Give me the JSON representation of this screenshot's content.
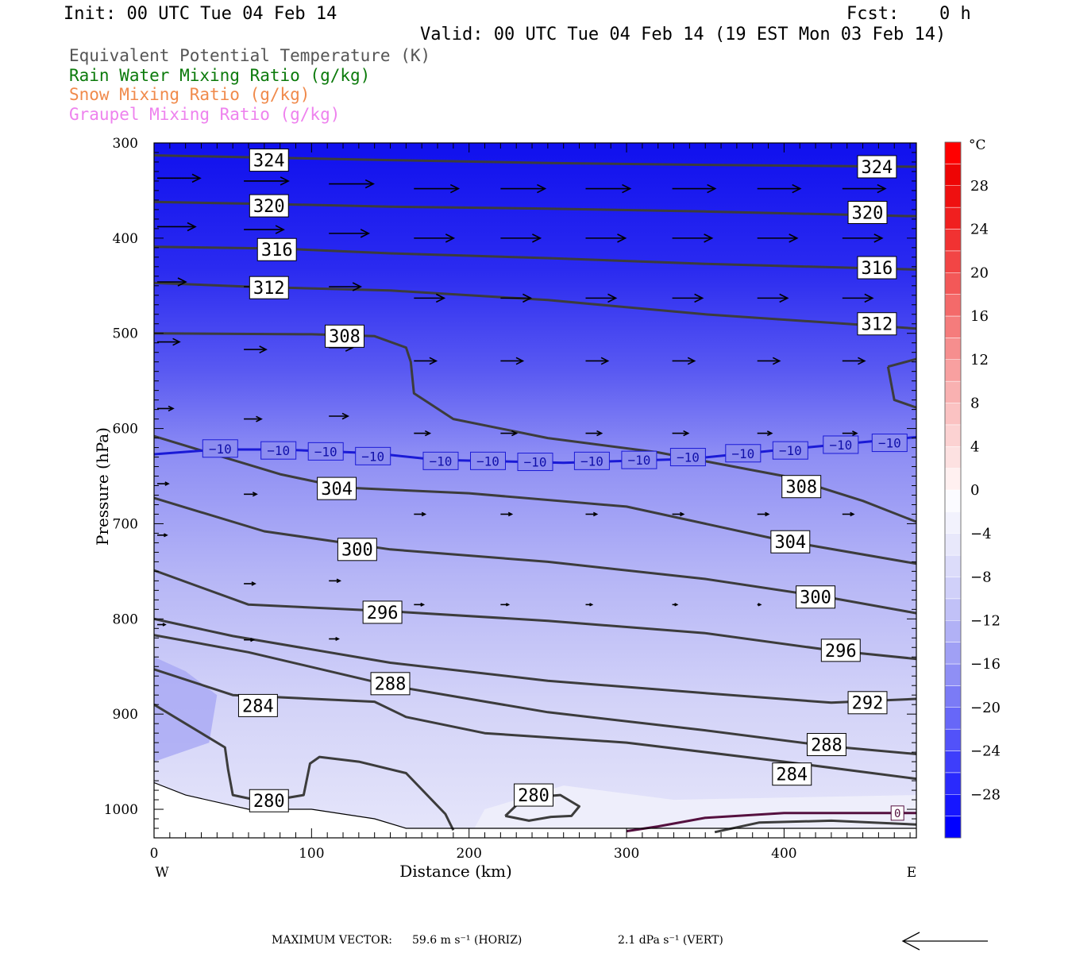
{
  "header": {
    "init": "Init: 00 UTC Tue 04 Feb 14",
    "fcst_label": "Fcst:",
    "fcst_value": "0 h",
    "valid": "Valid: 00 UTC Tue 04 Feb 14 (19 EST Mon 03 Feb 14)"
  },
  "legend": [
    {
      "text": "Equivalent Potential Temperature (K)",
      "color": "#555555"
    },
    {
      "text": "Rain Water Mixing Ratio (g/kg)",
      "color": "#0b7a0b"
    },
    {
      "text": "Snow Mixing Ratio (g/kg)",
      "color": "#f08a4b"
    },
    {
      "text": "Graupel Mixing Ratio (g/kg)",
      "color": "#ee82ee"
    }
  ],
  "chart_data": {
    "type": "contour",
    "xlabel": "Distance (km)",
    "ylabel": "Pressure (hPa)",
    "x_end_left": "W",
    "x_end_right": "E",
    "xlim": [
      0,
      484
    ],
    "ylim": [
      1030,
      300
    ],
    "x_ticks": [
      0,
      100,
      200,
      300,
      400
    ],
    "y_ticks": [
      300,
      400,
      500,
      600,
      700,
      800,
      900,
      1000
    ],
    "colorbar": {
      "unit": "°C",
      "tick_labels": [
        "28",
        "24",
        "20",
        "16",
        "12",
        "8",
        "4",
        "0",
        "−4",
        "−8",
        "−12",
        "−16",
        "−20",
        "−24",
        "−28"
      ],
      "tick_values": [
        28,
        24,
        20,
        16,
        12,
        8,
        4,
        0,
        -4,
        -8,
        -12,
        -16,
        -20,
        -24,
        -28
      ],
      "range": [
        -32,
        32
      ]
    },
    "theta_e_contours": [
      {
        "label": "324",
        "points": [
          [
            0,
            313
          ],
          [
            60,
            315
          ],
          [
            150,
            318
          ],
          [
            250,
            321
          ],
          [
            350,
            323
          ],
          [
            484,
            325
          ]
        ],
        "labels_at": [
          [
            73,
            318
          ],
          [
            459,
            325
          ]
        ]
      },
      {
        "label": "320",
        "points": [
          [
            0,
            362
          ],
          [
            70,
            364
          ],
          [
            150,
            367
          ],
          [
            250,
            369
          ],
          [
            350,
            372
          ],
          [
            484,
            377
          ]
        ],
        "labels_at": [
          [
            73,
            366
          ],
          [
            453,
            373
          ]
        ]
      },
      {
        "label": "316",
        "points": [
          [
            0,
            409
          ],
          [
            80,
            411
          ],
          [
            150,
            416
          ],
          [
            250,
            421
          ],
          [
            350,
            427
          ],
          [
            484,
            433
          ]
        ],
        "labels_at": [
          [
            78,
            412
          ],
          [
            459,
            431
          ]
        ]
      },
      {
        "label": "312",
        "points": [
          [
            0,
            447
          ],
          [
            60,
            451
          ],
          [
            150,
            455
          ],
          [
            250,
            465
          ],
          [
            350,
            480
          ],
          [
            484,
            495
          ]
        ],
        "labels_at": [
          [
            73,
            452
          ],
          [
            459,
            490
          ]
        ]
      },
      {
        "label": "308",
        "points": [
          [
            0,
            500
          ],
          [
            100,
            501
          ],
          [
            140,
            503
          ],
          [
            160,
            515
          ],
          [
            163,
            530
          ],
          [
            165,
            563
          ],
          [
            190,
            590
          ],
          [
            250,
            610
          ],
          [
            320,
            625
          ],
          [
            400,
            650
          ],
          [
            450,
            676
          ],
          [
            484,
            698
          ]
        ],
        "labels_at": [
          [
            121,
            503
          ],
          [
            411,
            661
          ]
        ]
      },
      {
        "label": "304",
        "points": [
          [
            0,
            608
          ],
          [
            40,
            628
          ],
          [
            80,
            648
          ],
          [
            120,
            662
          ],
          [
            200,
            668
          ],
          [
            300,
            682
          ],
          [
            400,
            718
          ],
          [
            484,
            742
          ]
        ],
        "labels_at": [
          [
            116,
            663
          ],
          [
            404,
            719
          ]
        ]
      },
      {
        "label": "300",
        "points": [
          [
            0,
            673
          ],
          [
            70,
            708
          ],
          [
            150,
            727
          ],
          [
            250,
            740
          ],
          [
            350,
            758
          ],
          [
            430,
            778
          ],
          [
            484,
            794
          ]
        ],
        "labels_at": [
          [
            129,
            727
          ],
          [
            420,
            777
          ]
        ]
      },
      {
        "label": "296",
        "points": [
          [
            0,
            749
          ],
          [
            60,
            785
          ],
          [
            150,
            792
          ],
          [
            250,
            802
          ],
          [
            350,
            815
          ],
          [
            430,
            833
          ],
          [
            484,
            842
          ]
        ],
        "labels_at": [
          [
            145,
            793
          ],
          [
            436,
            833
          ]
        ]
      },
      {
        "label": "292",
        "points": [
          [
            0,
            800
          ],
          [
            50,
            818
          ],
          [
            150,
            846
          ],
          [
            250,
            865
          ],
          [
            350,
            878
          ],
          [
            430,
            888
          ],
          [
            484,
            884
          ]
        ],
        "labels_at": [
          [
            453,
            888
          ]
        ]
      },
      {
        "label": "288",
        "points": [
          [
            0,
            817
          ],
          [
            60,
            835
          ],
          [
            150,
            870
          ],
          [
            250,
            898
          ],
          [
            350,
            917
          ],
          [
            430,
            934
          ],
          [
            484,
            942
          ]
        ],
        "labels_at": [
          [
            150,
            868
          ],
          [
            427,
            932
          ]
        ]
      },
      {
        "label": "284",
        "points": [
          [
            0,
            853
          ],
          [
            50,
            880
          ],
          [
            140,
            887
          ],
          [
            160,
            903
          ],
          [
            210,
            920
          ],
          [
            300,
            930
          ],
          [
            400,
            950
          ],
          [
            484,
            968
          ]
        ],
        "labels_at": [
          [
            66,
            891
          ],
          [
            405,
            963
          ]
        ]
      },
      {
        "label": "280",
        "points": [
          [
            0,
            890
          ],
          [
            20,
            910
          ],
          [
            45,
            935
          ],
          [
            47,
            958
          ],
          [
            50,
            985
          ],
          [
            70,
            992
          ],
          [
            95,
            985
          ],
          [
            99,
            952
          ],
          [
            105,
            945
          ],
          [
            130,
            950
          ],
          [
            160,
            962
          ],
          [
            185,
            1005
          ],
          [
            190,
            1022
          ]
        ],
        "labels_at": [
          [
            73,
            991
          ]
        ]
      },
      {
        "label": "280",
        "points": [
          [
            223,
            1007
          ],
          [
            235,
            988
          ],
          [
            258,
            985
          ],
          [
            270,
            997
          ],
          [
            265,
            1007
          ],
          [
            252,
            1008
          ],
          [
            238,
            1012
          ],
          [
            223,
            1007
          ]
        ],
        "labels_at": [
          [
            241,
            985
          ]
        ]
      },
      {
        "label": "",
        "points": [
          [
            466,
            535
          ],
          [
            484,
            527
          ]
        ],
        "labels_at": []
      },
      {
        "label": "",
        "points": [
          [
            466,
            535
          ],
          [
            470,
            570
          ],
          [
            484,
            578
          ]
        ],
        "labels_at": []
      },
      {
        "label": "",
        "points": [
          [
            356,
            1024
          ],
          [
            384,
            1014
          ],
          [
            430,
            1012
          ],
          [
            484,
            1016
          ]
        ],
        "labels_at": []
      }
    ],
    "isotherm_minus10": {
      "label": "−10",
      "points": [
        [
          0,
          627
        ],
        [
          40,
          622
        ],
        [
          80,
          622
        ],
        [
          140,
          626
        ],
        [
          180,
          633
        ],
        [
          260,
          636
        ],
        [
          340,
          632
        ],
        [
          400,
          622
        ],
        [
          484,
          609
        ]
      ],
      "labels_at": [
        [
          42,
          621
        ],
        [
          79,
          623
        ],
        [
          109,
          624
        ],
        [
          139,
          629
        ],
        [
          182,
          634
        ],
        [
          212,
          634
        ],
        [
          242,
          635
        ],
        [
          278,
          634
        ],
        [
          308,
          633
        ],
        [
          339,
          630
        ],
        [
          374,
          626
        ],
        [
          404,
          623
        ],
        [
          436,
          617
        ],
        [
          467,
          615
        ]
      ]
    },
    "zero_contour": {
      "label": "0",
      "points": [
        [
          300,
          1023
        ],
        [
          320,
          1018
        ],
        [
          350,
          1009
        ],
        [
          400,
          1004
        ],
        [
          484,
          1004
        ]
      ],
      "label_at": [
        [
          472,
          1004
        ]
      ]
    },
    "wind_vectors": [
      {
        "x": 0,
        "p": 337,
        "len": 54
      },
      {
        "x": 55,
        "p": 340,
        "len": 56
      },
      {
        "x": 109,
        "p": 343,
        "len": 56
      },
      {
        "x": 163,
        "p": 348,
        "len": 56
      },
      {
        "x": 218,
        "p": 348,
        "len": 56
      },
      {
        "x": 272,
        "p": 348,
        "len": 56
      },
      {
        "x": 327,
        "p": 348,
        "len": 54
      },
      {
        "x": 381,
        "p": 348,
        "len": 54
      },
      {
        "x": 435,
        "p": 348,
        "len": 54
      },
      {
        "x": 0,
        "p": 388,
        "len": 48
      },
      {
        "x": 55,
        "p": 391,
        "len": 50
      },
      {
        "x": 109,
        "p": 395,
        "len": 50
      },
      {
        "x": 163,
        "p": 400,
        "len": 50
      },
      {
        "x": 218,
        "p": 400,
        "len": 50
      },
      {
        "x": 272,
        "p": 400,
        "len": 50
      },
      {
        "x": 327,
        "p": 400,
        "len": 50
      },
      {
        "x": 381,
        "p": 400,
        "len": 50
      },
      {
        "x": 435,
        "p": 400,
        "len": 50
      },
      {
        "x": 0,
        "p": 446,
        "len": 36
      },
      {
        "x": 55,
        "p": 451,
        "len": 40
      },
      {
        "x": 109,
        "p": 451,
        "len": 40
      },
      {
        "x": 163,
        "p": 463,
        "len": 38
      },
      {
        "x": 218,
        "p": 463,
        "len": 38
      },
      {
        "x": 272,
        "p": 463,
        "len": 38
      },
      {
        "x": 327,
        "p": 463,
        "len": 38
      },
      {
        "x": 381,
        "p": 463,
        "len": 38
      },
      {
        "x": 435,
        "p": 463,
        "len": 38
      },
      {
        "x": 0,
        "p": 509,
        "len": 28
      },
      {
        "x": 55,
        "p": 517,
        "len": 28
      },
      {
        "x": 109,
        "p": 515,
        "len": 30
      },
      {
        "x": 163,
        "p": 529,
        "len": 28
      },
      {
        "x": 218,
        "p": 529,
        "len": 28
      },
      {
        "x": 272,
        "p": 529,
        "len": 28
      },
      {
        "x": 327,
        "p": 529,
        "len": 28
      },
      {
        "x": 381,
        "p": 529,
        "len": 28
      },
      {
        "x": 435,
        "p": 529,
        "len": 28
      },
      {
        "x": 0,
        "p": 579,
        "len": 20
      },
      {
        "x": 55,
        "p": 590,
        "len": 22
      },
      {
        "x": 109,
        "p": 587,
        "len": 24
      },
      {
        "x": 163,
        "p": 605,
        "len": 20
      },
      {
        "x": 218,
        "p": 605,
        "len": 20
      },
      {
        "x": 272,
        "p": 605,
        "len": 20
      },
      {
        "x": 327,
        "p": 605,
        "len": 20
      },
      {
        "x": 381,
        "p": 605,
        "len": 18
      },
      {
        "x": 435,
        "p": 605,
        "len": 18
      },
      {
        "x": 0,
        "p": 658,
        "len": 14
      },
      {
        "x": 55,
        "p": 669,
        "len": 16
      },
      {
        "x": 109,
        "p": 668,
        "len": 20
      },
      {
        "x": 163,
        "p": 690,
        "len": 14
      },
      {
        "x": 218,
        "p": 690,
        "len": 14
      },
      {
        "x": 272,
        "p": 690,
        "len": 14
      },
      {
        "x": 327,
        "p": 690,
        "len": 14
      },
      {
        "x": 381,
        "p": 690,
        "len": 14
      },
      {
        "x": 435,
        "p": 690,
        "len": 14
      },
      {
        "x": 0,
        "p": 712,
        "len": 12
      },
      {
        "x": 55,
        "p": 763,
        "len": 14
      },
      {
        "x": 109,
        "p": 760,
        "len": 14
      },
      {
        "x": 163,
        "p": 785,
        "len": 12
      },
      {
        "x": 218,
        "p": 785,
        "len": 10
      },
      {
        "x": 272,
        "p": 785,
        "len": 8
      },
      {
        "x": 327,
        "p": 785,
        "len": 6
      },
      {
        "x": 381,
        "p": 785,
        "len": 4
      },
      {
        "x": 0,
        "p": 806,
        "len": 10
      },
      {
        "x": 55,
        "p": 822,
        "len": 12
      },
      {
        "x": 109,
        "p": 821,
        "len": 12
      }
    ],
    "footer": {
      "max_vector_label": "MAXIMUM VECTOR:",
      "horiz": "59.6 m s⁻¹ (HORIZ)",
      "vert": "2.1 dPa s⁻¹ (VERT)"
    }
  }
}
